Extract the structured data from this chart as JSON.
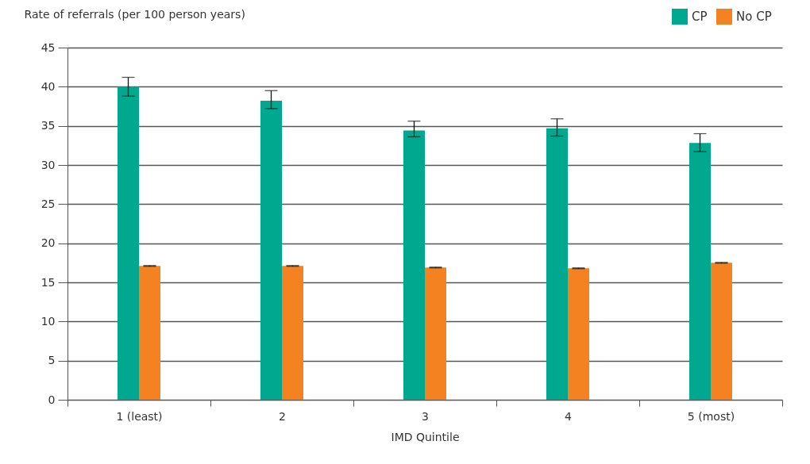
{
  "chart_data": {
    "type": "bar",
    "xlabel": "IMD Quintile",
    "ylabel": "Rate of referrals (per 100 person years)",
    "categories": [
      "1 (least)",
      "2",
      "3",
      "4",
      "5 (most)"
    ],
    "series": [
      {
        "name": "CP",
        "color": "#00a88f",
        "values": [
          40.0,
          38.2,
          34.4,
          34.7,
          32.8
        ],
        "errors": [
          [
            38.8,
            41.2
          ],
          [
            37.2,
            39.5
          ],
          [
            33.6,
            35.6
          ],
          [
            33.7,
            35.9
          ],
          [
            31.7,
            34.0
          ]
        ]
      },
      {
        "name": "No CP",
        "color": "#f58220",
        "values": [
          17.1,
          17.1,
          16.9,
          16.8,
          17.5
        ],
        "errors": [
          [
            17.05,
            17.15
          ],
          [
            17.05,
            17.15
          ],
          [
            16.85,
            16.95
          ],
          [
            16.75,
            16.85
          ],
          [
            17.45,
            17.55
          ]
        ]
      }
    ],
    "ylim": [
      0,
      45
    ],
    "yticks": [
      0,
      5,
      10,
      15,
      20,
      25,
      30,
      35,
      40,
      45
    ],
    "grid": "y",
    "legend": "top right"
  }
}
